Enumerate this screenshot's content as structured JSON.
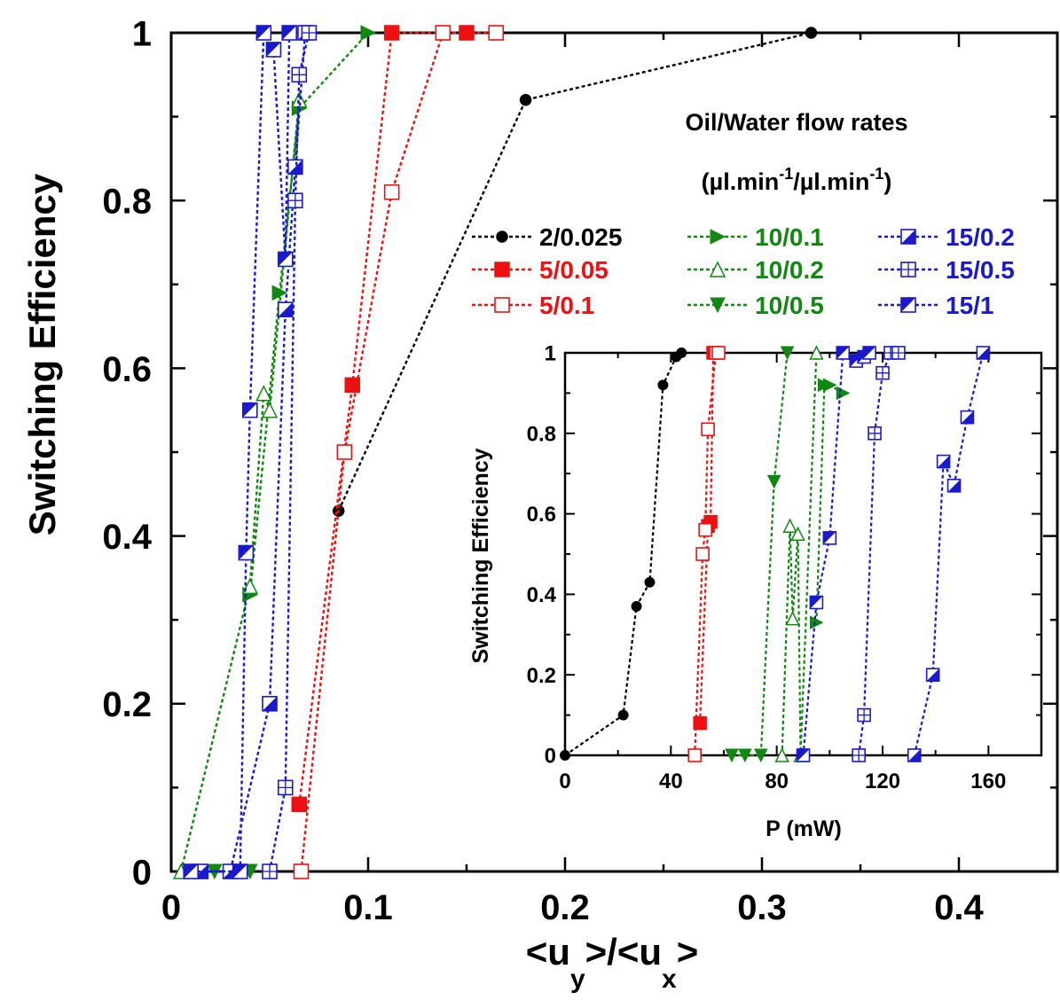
{
  "chart_data": [
    {
      "type": "scatter",
      "title": "",
      "xlabel": "<u_y>/<u_x>",
      "xlabel_main": "<u",
      "xlabel_sub_y": "y",
      "xlabel_mid": ">/<u",
      "xlabel_sub_x": "x",
      "xlabel_end": ">",
      "ylabel": "Switching Efficiency",
      "xlim": [
        0,
        0.45
      ],
      "ylim": [
        0,
        1
      ],
      "xticks": [
        0,
        0.1,
        0.2,
        0.3,
        0.4
      ],
      "xtick_labels": [
        "0",
        "0.1",
        "0.2",
        "0.3",
        "0.4"
      ],
      "yticks": [
        0,
        0.2,
        0.4,
        0.6,
        0.8,
        1
      ],
      "ytick_labels": [
        "0",
        "0.2",
        "0.4",
        "0.6",
        "0.8",
        "1"
      ],
      "grid": false,
      "legend_placement": "upper right",
      "legend_title_line1": "Oil/Water flow rates",
      "legend_title_line2_a": "(µl.min",
      "legend_title_sup_1": "-1",
      "legend_title_line2_b": "/µl.min",
      "legend_title_sup_2": "-1",
      "legend_title_line2_c": ")",
      "series": [
        {
          "name": "2/0.025",
          "color": "#000000",
          "marker": "circle",
          "x": [
            0.085,
            0.18,
            0.325
          ],
          "y": [
            0.43,
            0.92,
            1.0
          ]
        },
        {
          "name": "5/0.05",
          "color": "#ee1111",
          "marker": "square-filled",
          "x": [
            0.065,
            0.092,
            0.112,
            0.15
          ],
          "y": [
            0.08,
            0.58,
            1.0,
            1.0
          ]
        },
        {
          "name": "5/0.1",
          "color": "#ee1111",
          "marker": "square-open",
          "x": [
            0.066,
            0.088,
            0.112,
            0.138,
            0.165
          ],
          "y": [
            0.0,
            0.5,
            0.81,
            1.0,
            1.0
          ]
        },
        {
          "name": "10/0.1",
          "color": "#118811",
          "marker": "triangle-right",
          "x": [
            0.04,
            0.055,
            0.065,
            0.1
          ],
          "y": [
            0.33,
            0.69,
            0.91,
            1.0
          ]
        },
        {
          "name": "10/0.2",
          "color": "#118811",
          "marker": "triangle-up-open",
          "x": [
            0.005,
            0.04,
            0.047,
            0.05,
            0.065
          ],
          "y": [
            0.0,
            0.34,
            0.57,
            0.55,
            0.92
          ]
        },
        {
          "name": "10/0.5",
          "color": "#118811",
          "marker": "triangle-down",
          "x": [
            0.022,
            0.03,
            0.04
          ],
          "y": [
            0.0,
            0.0,
            0.0
          ]
        },
        {
          "name": "15/0.2",
          "color": "#1a1acc",
          "marker": "square-half-lower",
          "x": [
            0.015,
            0.03,
            0.05,
            0.058,
            0.063,
            0.068
          ],
          "y": [
            0.0,
            0.0,
            0.2,
            0.67,
            0.84,
            1.0
          ]
        },
        {
          "name": "15/0.5",
          "color": "#1a1acc",
          "marker": "square-crossed",
          "x": [
            0.05,
            0.058,
            0.063,
            0.065,
            0.07
          ],
          "y": [
            0.0,
            0.1,
            0.8,
            0.95,
            1.0
          ]
        },
        {
          "name": "15/1",
          "color": "#1a1acc",
          "marker": "square-half-upper",
          "x": [
            0.01,
            0.035,
            0.038,
            0.04,
            0.047,
            0.052,
            0.058,
            0.06
          ],
          "y": [
            0.0,
            0.0,
            0.38,
            0.55,
            1.0,
            0.98,
            0.73,
            1.0
          ]
        }
      ]
    },
    {
      "type": "scatter",
      "title": "",
      "xlabel": "P (mW)",
      "ylabel": "Switching Efficiency",
      "xlim": [
        0,
        180
      ],
      "ylim": [
        0,
        1
      ],
      "xticks": [
        0,
        40,
        80,
        120,
        160
      ],
      "xtick_labels": [
        "0",
        "40",
        "80",
        "120",
        "160"
      ],
      "yticks": [
        0,
        0.2,
        0.4,
        0.6,
        0.8,
        1
      ],
      "ytick_labels": [
        "0",
        "0.2",
        "0.4",
        "0.6",
        "0.8",
        "1"
      ],
      "grid": false,
      "series": [
        {
          "name": "2/0.025",
          "color": "#000000",
          "marker": "circle",
          "x": [
            0,
            22,
            27,
            32,
            37,
            42,
            44
          ],
          "y": [
            0.0,
            0.1,
            0.37,
            0.43,
            0.92,
            0.99,
            1.0
          ]
        },
        {
          "name": "5/0.05",
          "color": "#ee1111",
          "marker": "square-filled",
          "x": [
            51,
            54,
            55,
            56
          ],
          "y": [
            0.08,
            0.57,
            0.58,
            1.0
          ]
        },
        {
          "name": "5/0.1",
          "color": "#ee1111",
          "marker": "square-open",
          "x": [
            49,
            52,
            53,
            54,
            57,
            58
          ],
          "y": [
            0.0,
            0.5,
            0.56,
            0.81,
            1.0,
            1.0
          ]
        },
        {
          "name": "10/0.1",
          "color": "#118811",
          "marker": "triangle-right",
          "x": [
            95,
            98,
            100,
            105
          ],
          "y": [
            0.33,
            0.92,
            0.92,
            0.9
          ]
        },
        {
          "name": "10/0.2",
          "color": "#118811",
          "marker": "triangle-up-open",
          "x": [
            82,
            85,
            86,
            88,
            89,
            95
          ],
          "y": [
            0.0,
            0.57,
            0.34,
            0.55,
            0.0,
            1.0
          ]
        },
        {
          "name": "10/0.5",
          "color": "#118811",
          "marker": "triangle-down",
          "x": [
            63,
            68,
            74,
            79,
            84
          ],
          "y": [
            0.0,
            0.0,
            0.0,
            0.68,
            1.0
          ]
        },
        {
          "name": "15/0.2",
          "color": "#1a1acc",
          "marker": "square-half-lower",
          "x": [
            132,
            139,
            143,
            147,
            152,
            158
          ],
          "y": [
            0.0,
            0.2,
            0.73,
            0.67,
            0.84,
            1.0
          ]
        },
        {
          "name": "15/0.5",
          "color": "#1a1acc",
          "marker": "square-crossed",
          "x": [
            111,
            113,
            117,
            120,
            123,
            126
          ],
          "y": [
            0.0,
            0.1,
            0.8,
            0.95,
            1.0,
            1.0
          ]
        },
        {
          "name": "15/1",
          "color": "#1a1acc",
          "marker": "square-half-upper",
          "x": [
            90,
            95,
            100,
            105,
            110,
            113,
            115
          ],
          "y": [
            0.0,
            0.38,
            0.54,
            1.0,
            0.98,
            0.99,
            1.0
          ]
        }
      ]
    }
  ]
}
